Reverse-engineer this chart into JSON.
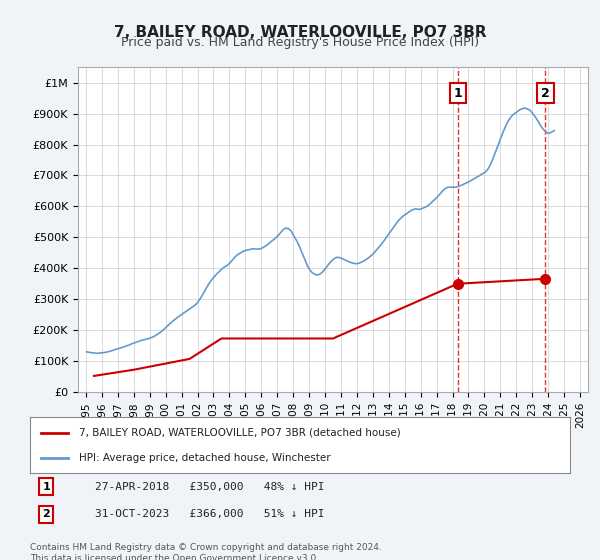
{
  "title": "7, BAILEY ROAD, WATERLOOVILLE, PO7 3BR",
  "subtitle": "Price paid vs. HM Land Registry's House Price Index (HPI)",
  "hpi_label": "HPI: Average price, detached house, Winchester",
  "property_label": "7, BAILEY ROAD, WATERLOOVILLE, PO7 3BR (detached house)",
  "hpi_color": "#6699cc",
  "property_color": "#cc0000",
  "marker_color": "#cc0000",
  "vline_color": "#cc0000",
  "annotation_box_color": "#cc0000",
  "background_color": "#f0f4f8",
  "plot_bg_color": "#ffffff",
  "footnote": "Contains HM Land Registry data © Crown copyright and database right 2024.\nThis data is licensed under the Open Government Licence v3.0.",
  "sales": [
    {
      "date": 2018.32,
      "price": 350000,
      "label": "1",
      "annotation": "27-APR-2018   £350,000   48% ↓ HPI"
    },
    {
      "date": 2023.83,
      "price": 366000,
      "label": "2",
      "annotation": "31-OCT-2023   £366,000   51% ↓ HPI"
    }
  ],
  "ylim": [
    0,
    1050000
  ],
  "yticks": [
    0,
    100000,
    200000,
    300000,
    400000,
    500000,
    600000,
    700000,
    800000,
    900000,
    1000000
  ],
  "xlim_start": 1994.5,
  "xlim_end": 2026.5,
  "xticks": [
    1995,
    1996,
    1997,
    1998,
    1999,
    2000,
    2001,
    2002,
    2003,
    2004,
    2005,
    2006,
    2007,
    2008,
    2009,
    2010,
    2011,
    2012,
    2013,
    2014,
    2015,
    2016,
    2017,
    2018,
    2019,
    2020,
    2021,
    2022,
    2023,
    2024,
    2025,
    2026
  ],
  "hpi_data": {
    "years": [
      1995.04,
      1995.21,
      1995.38,
      1995.54,
      1995.71,
      1995.88,
      1996.04,
      1996.21,
      1996.38,
      1996.54,
      1996.71,
      1996.88,
      1997.04,
      1997.21,
      1997.38,
      1997.54,
      1997.71,
      1997.88,
      1998.04,
      1998.21,
      1998.38,
      1998.54,
      1998.71,
      1998.88,
      1999.04,
      1999.21,
      1999.38,
      1999.54,
      1999.71,
      1999.88,
      2000.04,
      2000.21,
      2000.38,
      2000.54,
      2000.71,
      2000.88,
      2001.04,
      2001.21,
      2001.38,
      2001.54,
      2001.71,
      2001.88,
      2002.04,
      2002.21,
      2002.38,
      2002.54,
      2002.71,
      2002.88,
      2003.04,
      2003.21,
      2003.38,
      2003.54,
      2003.71,
      2003.88,
      2004.04,
      2004.21,
      2004.38,
      2004.54,
      2004.71,
      2004.88,
      2005.04,
      2005.21,
      2005.38,
      2005.54,
      2005.71,
      2005.88,
      2006.04,
      2006.21,
      2006.38,
      2006.54,
      2006.71,
      2006.88,
      2007.04,
      2007.21,
      2007.38,
      2007.54,
      2007.71,
      2007.88,
      2008.04,
      2008.21,
      2008.38,
      2008.54,
      2008.71,
      2008.88,
      2009.04,
      2009.21,
      2009.38,
      2009.54,
      2009.71,
      2009.88,
      2010.04,
      2010.21,
      2010.38,
      2010.54,
      2010.71,
      2010.88,
      2011.04,
      2011.21,
      2011.38,
      2011.54,
      2011.71,
      2011.88,
      2012.04,
      2012.21,
      2012.38,
      2012.54,
      2012.71,
      2012.88,
      2013.04,
      2013.21,
      2013.38,
      2013.54,
      2013.71,
      2013.88,
      2014.04,
      2014.21,
      2014.38,
      2014.54,
      2014.71,
      2014.88,
      2015.04,
      2015.21,
      2015.38,
      2015.54,
      2015.71,
      2015.88,
      2016.04,
      2016.21,
      2016.38,
      2016.54,
      2016.71,
      2016.88,
      2017.04,
      2017.21,
      2017.38,
      2017.54,
      2017.71,
      2017.88,
      2018.04,
      2018.21,
      2018.38,
      2018.54,
      2018.71,
      2018.88,
      2019.04,
      2019.21,
      2019.38,
      2019.54,
      2019.71,
      2019.88,
      2020.04,
      2020.21,
      2020.38,
      2020.54,
      2020.71,
      2020.88,
      2021.04,
      2021.21,
      2021.38,
      2021.54,
      2021.71,
      2021.88,
      2022.04,
      2022.21,
      2022.38,
      2022.54,
      2022.71,
      2022.88,
      2023.04,
      2023.21,
      2023.38,
      2023.54,
      2023.71,
      2023.88,
      2024.04,
      2024.21,
      2024.38
    ],
    "values": [
      130000,
      128000,
      127000,
      126000,
      125000,
      126000,
      127000,
      128000,
      130000,
      132000,
      135000,
      138000,
      140000,
      143000,
      146000,
      149000,
      152000,
      156000,
      159000,
      162000,
      165000,
      168000,
      170000,
      172000,
      175000,
      178000,
      183000,
      188000,
      195000,
      202000,
      210000,
      218000,
      226000,
      233000,
      240000,
      246000,
      252000,
      258000,
      264000,
      270000,
      276000,
      282000,
      292000,
      305000,
      320000,
      335000,
      350000,
      362000,
      372000,
      382000,
      390000,
      398000,
      405000,
      410000,
      418000,
      428000,
      438000,
      445000,
      450000,
      455000,
      458000,
      460000,
      462000,
      463000,
      462000,
      462000,
      465000,
      470000,
      476000,
      483000,
      490000,
      497000,
      505000,
      515000,
      525000,
      530000,
      528000,
      520000,
      505000,
      490000,
      472000,
      452000,
      430000,
      410000,
      395000,
      385000,
      380000,
      378000,
      382000,
      390000,
      400000,
      412000,
      422000,
      430000,
      435000,
      435000,
      432000,
      428000,
      424000,
      420000,
      417000,
      415000,
      415000,
      418000,
      422000,
      427000,
      433000,
      440000,
      448000,
      458000,
      468000,
      478000,
      490000,
      502000,
      514000,
      526000,
      538000,
      550000,
      560000,
      568000,
      574000,
      580000,
      586000,
      590000,
      592000,
      590000,
      592000,
      596000,
      600000,
      606000,
      614000,
      622000,
      630000,
      640000,
      650000,
      658000,
      662000,
      662000,
      662000,
      662000,
      665000,
      668000,
      672000,
      676000,
      680000,
      685000,
      690000,
      695000,
      700000,
      706000,
      710000,
      720000,
      735000,
      755000,
      778000,
      800000,
      822000,
      845000,
      865000,
      880000,
      892000,
      900000,
      905000,
      912000,
      916000,
      918000,
      915000,
      910000,
      900000,
      888000,
      874000,
      860000,
      848000,
      840000,
      836000,
      840000,
      845000
    ]
  },
  "property_data": {
    "years": [
      1995.5,
      1998.0,
      2001.5,
      2003.5,
      2010.5,
      2018.32,
      2023.83
    ],
    "values": [
      52000,
      72000,
      107000,
      173000,
      173000,
      350000,
      366000
    ]
  }
}
